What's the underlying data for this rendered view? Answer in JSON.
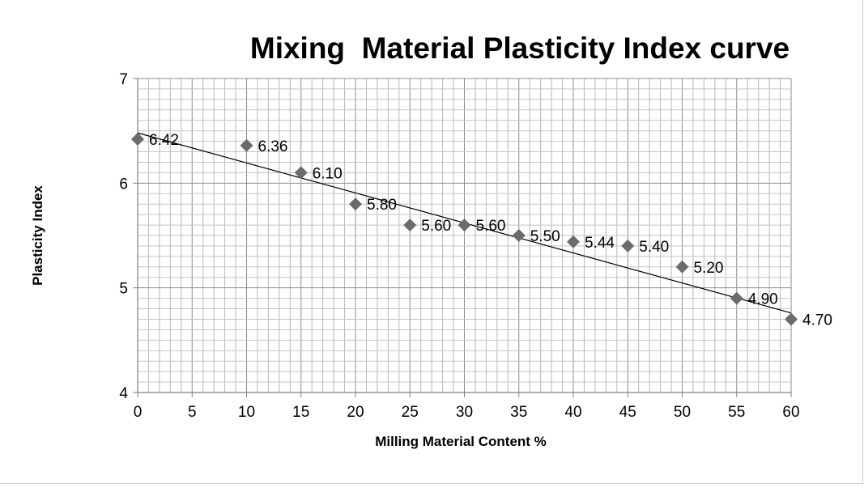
{
  "chart_data": {
    "type": "scatter",
    "title": "Mixing  Material Plasticity Index curve",
    "xlabel": "Milling Material Content %",
    "ylabel": "Plasticity Index",
    "xlim": [
      0,
      60
    ],
    "ylim": [
      4,
      7
    ],
    "x_ticks": [
      0,
      5,
      10,
      15,
      20,
      25,
      30,
      35,
      40,
      45,
      50,
      55,
      60
    ],
    "x_tick_labels": [
      "0",
      "5",
      "10",
      "15",
      "20",
      "25",
      "30",
      "35",
      "40",
      "45",
      "50",
      "55",
      "60"
    ],
    "y_ticks": [
      4,
      5,
      6,
      7
    ],
    "y_tick_labels": [
      "4",
      "5",
      "6",
      "7"
    ],
    "grid": true,
    "legend": "none",
    "marker": "diamond",
    "marker_color": "#6b6b6b",
    "trendline": {
      "type": "linear",
      "from": [
        0,
        6.48
      ],
      "to": [
        60,
        4.76
      ],
      "color": "#000000"
    },
    "x": [
      0,
      10,
      15,
      20,
      25,
      30,
      35,
      40,
      45,
      50,
      55,
      60
    ],
    "y": [
      6.42,
      6.36,
      6.1,
      5.8,
      5.6,
      5.6,
      5.5,
      5.44,
      5.4,
      5.2,
      4.9,
      4.7
    ],
    "data_labels": [
      "6.42",
      "6.36",
      "6.10",
      "5.80",
      "5.60",
      "5.60",
      "5.50",
      "5.44",
      "5.40",
      "5.20",
      "4.90",
      "4.70"
    ]
  }
}
